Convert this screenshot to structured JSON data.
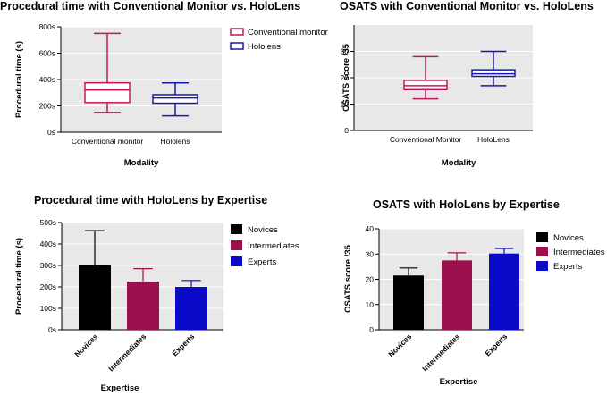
{
  "chart_data": [
    {
      "type": "box",
      "title": "Procedural time with Conventional Monitor vs. HoloLens",
      "xlabel": "Modality",
      "ylabel": "Procedural time (s)",
      "ylim": [
        0,
        800
      ],
      "yticks": [
        "0s",
        "200s",
        "400s",
        "600s",
        "800s"
      ],
      "categories": [
        "Conventional monitor",
        "Hololens"
      ],
      "legend": [
        "Conventional monitor",
        "Hololens"
      ],
      "colors": [
        "#c2185b",
        "#1a1aa6"
      ],
      "boxes": [
        {
          "min": 150,
          "q1": 225,
          "median": 320,
          "q3": 375,
          "max": 750
        },
        {
          "min": 125,
          "q1": 220,
          "median": 260,
          "q3": 285,
          "max": 375
        }
      ]
    },
    {
      "type": "box",
      "title": "OSATS with Conventional Monitor vs. HoloLens",
      "xlabel": "Modality",
      "ylabel": "OSATS score /35",
      "ylim": [
        0,
        40
      ],
      "yticks": [
        "0",
        "10",
        "20",
        "30"
      ],
      "categories": [
        "Conventional Monitor",
        "HoloLens"
      ],
      "colors": [
        "#c2185b",
        "#1a1aa6"
      ],
      "boxes": [
        {
          "min": 12,
          "q1": 15.5,
          "median": 17,
          "q3": 19,
          "max": 28
        },
        {
          "min": 17,
          "q1": 20.5,
          "median": 21.5,
          "q3": 23,
          "max": 30
        }
      ]
    },
    {
      "type": "bar",
      "title": "Procedural time with HoloLens by Expertise",
      "xlabel": "Expertise",
      "ylabel": "Procedural time (s)",
      "ylim": [
        0,
        500
      ],
      "yticks": [
        "0s",
        "100s",
        "200s",
        "300s",
        "400s",
        "500s"
      ],
      "categories": [
        "Novices",
        "Intermediates",
        "Experts"
      ],
      "legend": [
        "Novices",
        "Intermediates",
        "Experts"
      ],
      "colors": [
        "#000000",
        "#9c1050",
        "#0a0ac8"
      ],
      "values": [
        300,
        225,
        200
      ],
      "errors": [
        162,
        60,
        30
      ]
    },
    {
      "type": "bar",
      "title": "OSATS with HoloLens by Expertise",
      "xlabel": "Expertise",
      "ylabel": "OSATS score /35",
      "ylim": [
        0,
        40
      ],
      "yticks": [
        "0",
        "10",
        "20",
        "30",
        "40"
      ],
      "categories": [
        "Novices",
        "Intermediates",
        "Experts"
      ],
      "legend": [
        "Novices",
        "Intermediates",
        "Experts"
      ],
      "colors": [
        "#000000",
        "#9c1050",
        "#0a0ac8"
      ],
      "values": [
        21.5,
        27.5,
        30.2
      ],
      "errors": [
        3,
        3,
        2
      ]
    }
  ]
}
